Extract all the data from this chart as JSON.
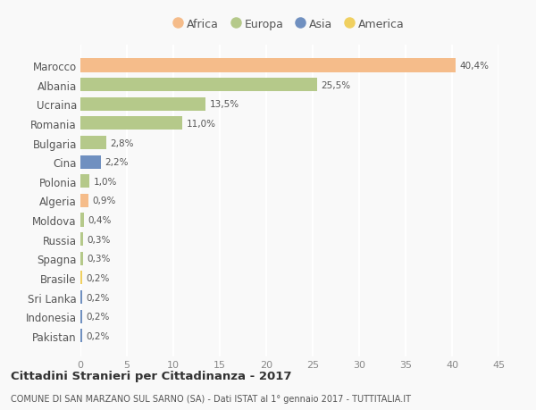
{
  "categories": [
    "Marocco",
    "Albania",
    "Ucraina",
    "Romania",
    "Bulgaria",
    "Cina",
    "Polonia",
    "Algeria",
    "Moldova",
    "Russia",
    "Spagna",
    "Brasile",
    "Sri Lanka",
    "Indonesia",
    "Pakistan"
  ],
  "values": [
    40.4,
    25.5,
    13.5,
    11.0,
    2.8,
    2.2,
    1.0,
    0.9,
    0.4,
    0.3,
    0.3,
    0.2,
    0.2,
    0.2,
    0.2
  ],
  "labels": [
    "40,4%",
    "25,5%",
    "13,5%",
    "11,0%",
    "2,8%",
    "2,2%",
    "1,0%",
    "0,9%",
    "0,4%",
    "0,3%",
    "0,3%",
    "0,2%",
    "0,2%",
    "0,2%",
    "0,2%"
  ],
  "colors": [
    "#f5bc8a",
    "#b5c98a",
    "#b5c98a",
    "#b5c98a",
    "#b5c98a",
    "#7090c0",
    "#b5c98a",
    "#f5bc8a",
    "#b5c98a",
    "#b5c98a",
    "#b5c98a",
    "#f0d060",
    "#7090c0",
    "#7090c0",
    "#7090c0"
  ],
  "legend_labels": [
    "Africa",
    "Europa",
    "Asia",
    "America"
  ],
  "legend_colors": [
    "#f5bc8a",
    "#b5c98a",
    "#7090c0",
    "#f0d060"
  ],
  "xlim": [
    0,
    45
  ],
  "xticks": [
    0,
    5,
    10,
    15,
    20,
    25,
    30,
    35,
    40,
    45
  ],
  "title": "Cittadini Stranieri per Cittadinanza - 2017",
  "subtitle": "COMUNE DI SAN MARZANO SUL SARNO (SA) - Dati ISTAT al 1° gennaio 2017 - TUTTITALIA.IT",
  "bg_color": "#f9f9f9",
  "grid_color": "#ffffff",
  "bar_height": 0.7
}
